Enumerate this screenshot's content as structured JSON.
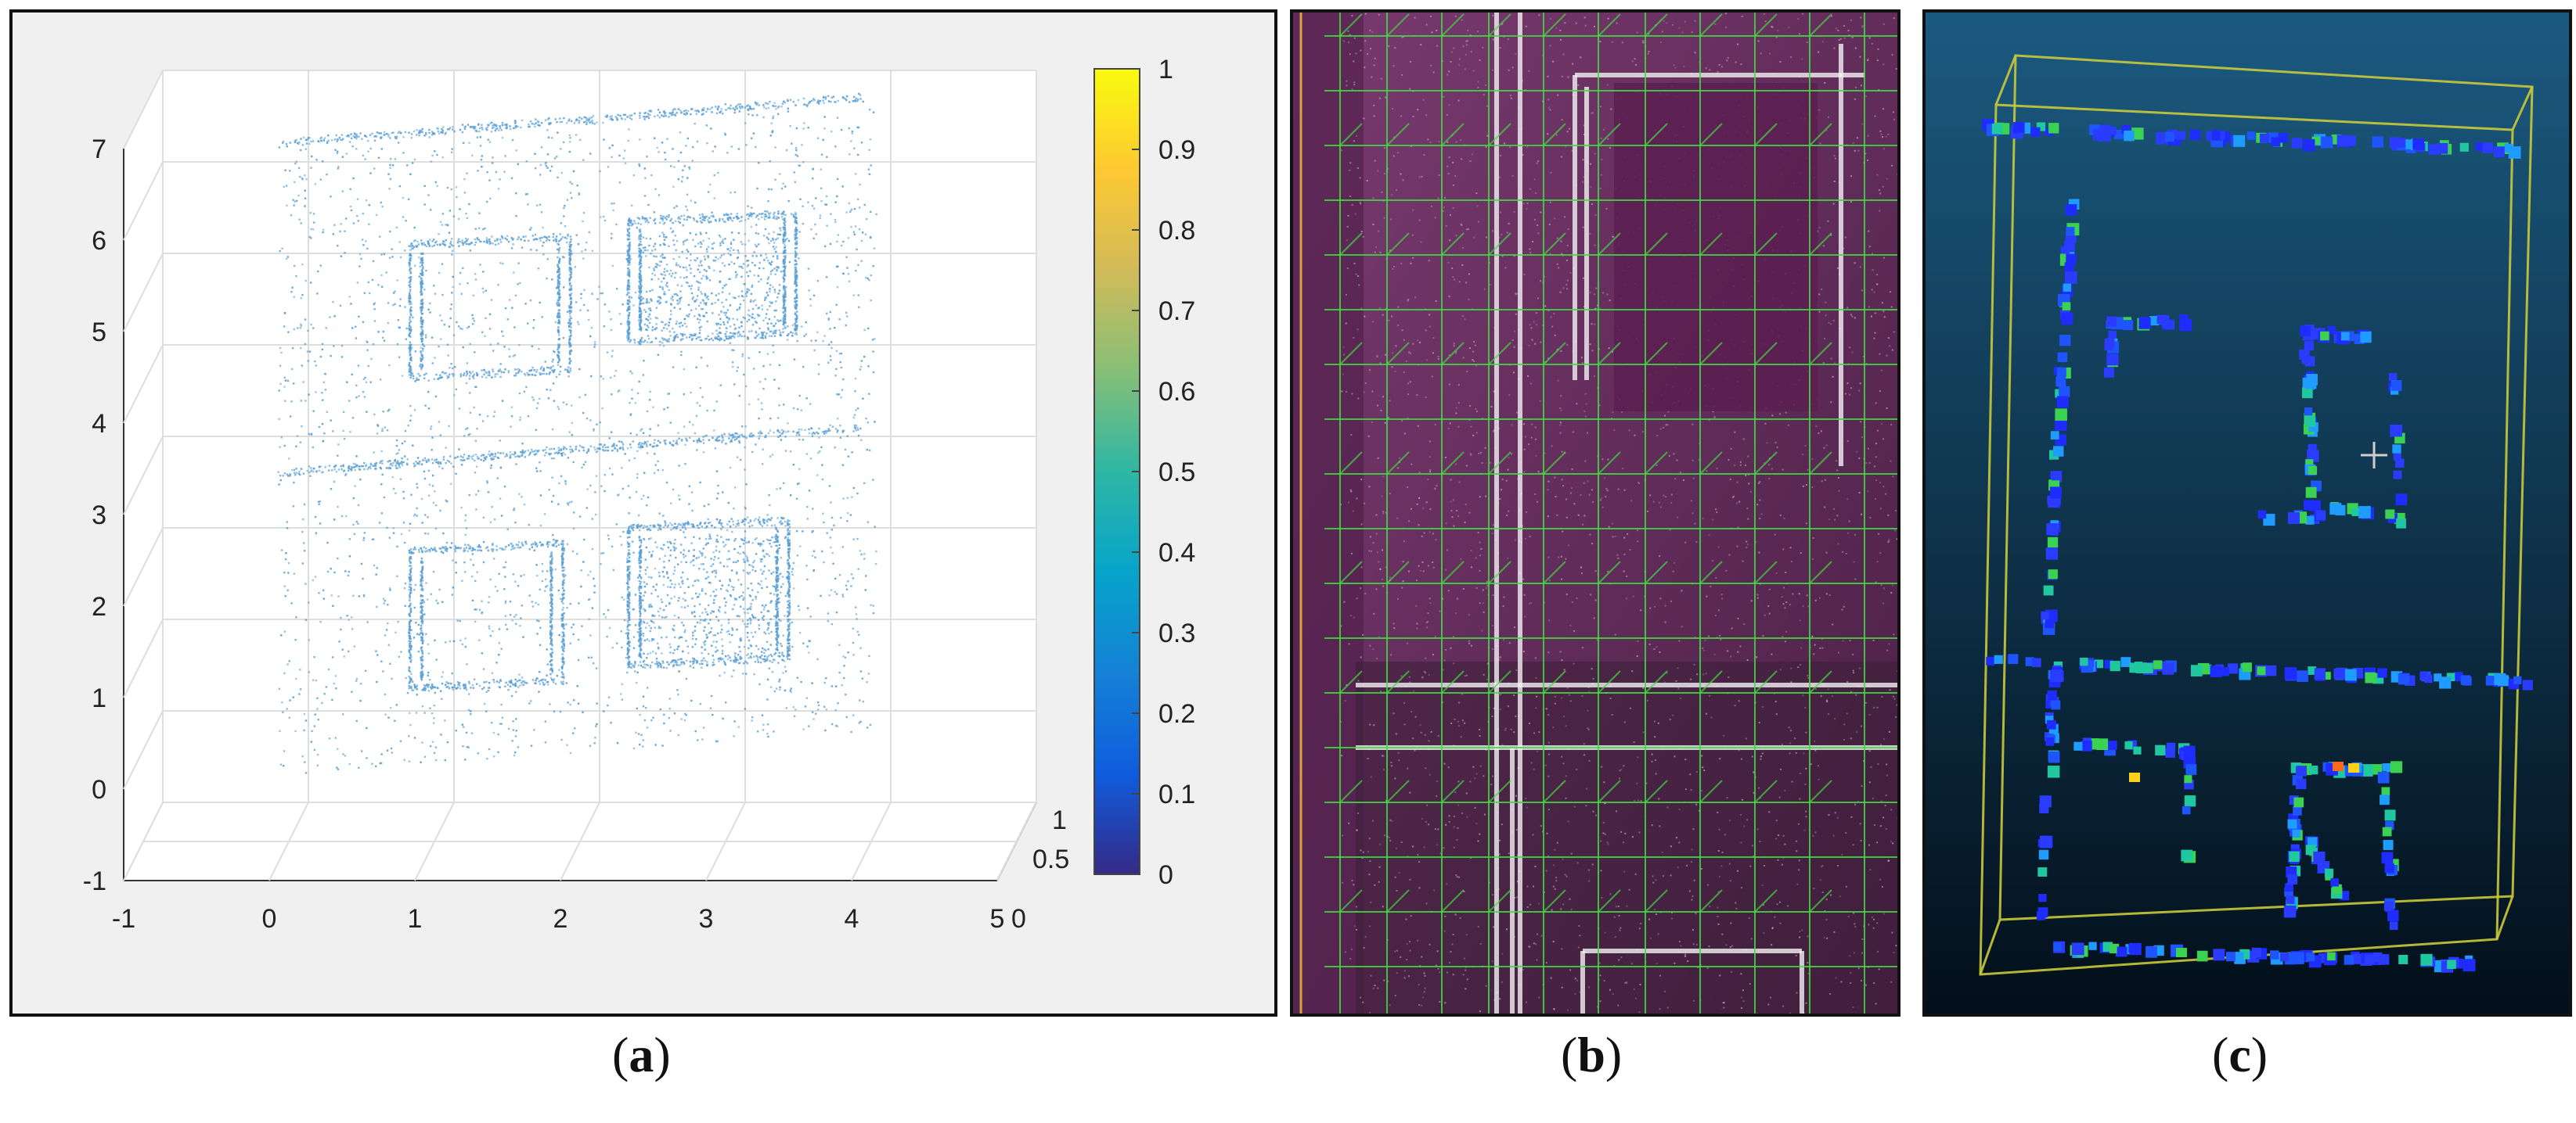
{
  "captions": {
    "a": "a",
    "b": "b",
    "c": "c"
  },
  "chart_data": {
    "type": "scatter",
    "subtype": "3d-point-cloud",
    "title": "",
    "xlabel": "",
    "ylabel": "",
    "zlabel": "",
    "x_ticks": [
      "-1",
      "0",
      "1",
      "2",
      "3",
      "4",
      "5"
    ],
    "y_ticks": [
      "0",
      "0.5",
      "1"
    ],
    "z_ticks": [
      "-1",
      "0",
      "1",
      "2",
      "3",
      "4",
      "5",
      "6",
      "7"
    ],
    "xlim": [
      -1,
      5
    ],
    "ylim": [
      0,
      1
    ],
    "zlim": [
      -1,
      7
    ],
    "grid": true,
    "point_color": "#5a9fd4",
    "colorbar": {
      "ticks": [
        "0",
        "0.1",
        "0.2",
        "0.3",
        "0.4",
        "0.5",
        "0.6",
        "0.7",
        "0.8",
        "0.9",
        "1"
      ],
      "range": [
        0,
        1
      ],
      "colormap": "parula"
    }
  },
  "colors": {
    "panel_b_background": "#6e2d63",
    "panel_b_grid": "#3fdc3f",
    "panel_c_background": "#0a2a3e",
    "panel_c_box": "#c9c93a",
    "panel_c_points": "#2a3cff"
  }
}
